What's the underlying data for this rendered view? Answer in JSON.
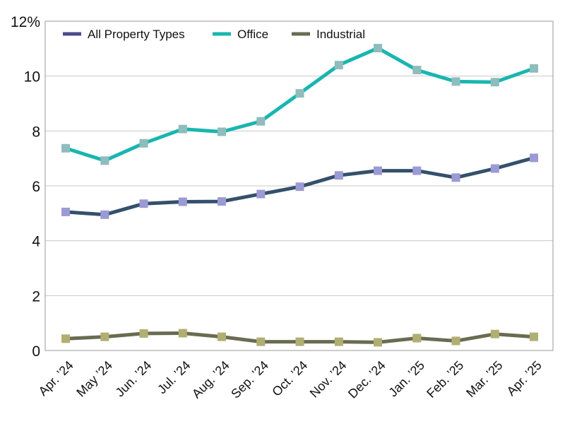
{
  "chart_data": {
    "type": "line",
    "title": "",
    "xlabel": "",
    "ylabel": "",
    "categories": [
      "Apr. ’24",
      "May ’24",
      "Jun. ’24",
      "Jul. ’24",
      "Aug. ’24",
      "Sep. ’24",
      "Oct. ’24",
      "Nov. ’24",
      "Dec. ’24",
      "Jan. ’25",
      "Feb. ’25",
      "Mar. ’25",
      "Apr. ’25"
    ],
    "ylim": [
      0,
      12
    ],
    "yticks": [
      0,
      2,
      4,
      6,
      8,
      10,
      12
    ],
    "ytick_labels": [
      "0",
      "2",
      "4",
      "6",
      "8",
      "10",
      "12%"
    ],
    "grid": true,
    "legend_position": "top-left",
    "series": [
      {
        "name": "All Property Types",
        "line_color": "#34506b",
        "legend_color": "#4b4a8e",
        "marker_color": "#9c9ad4",
        "values": [
          5.05,
          4.95,
          5.35,
          5.42,
          5.43,
          5.7,
          5.97,
          6.38,
          6.55,
          6.55,
          6.3,
          6.63,
          7.02
        ]
      },
      {
        "name": "Office",
        "line_color": "#1ab5b0",
        "legend_color": "#1ab5b0",
        "marker_color": "#8fbcbc",
        "values": [
          7.37,
          6.92,
          7.55,
          8.07,
          7.97,
          8.35,
          9.37,
          10.4,
          11.02,
          10.22,
          9.8,
          9.78,
          10.28
        ]
      },
      {
        "name": "Industrial",
        "line_color": "#6b6b52",
        "legend_color": "#6b6b52",
        "marker_color": "#b0ae72",
        "values": [
          0.43,
          0.5,
          0.62,
          0.63,
          0.5,
          0.32,
          0.32,
          0.32,
          0.3,
          0.45,
          0.35,
          0.6,
          0.5
        ]
      }
    ]
  }
}
